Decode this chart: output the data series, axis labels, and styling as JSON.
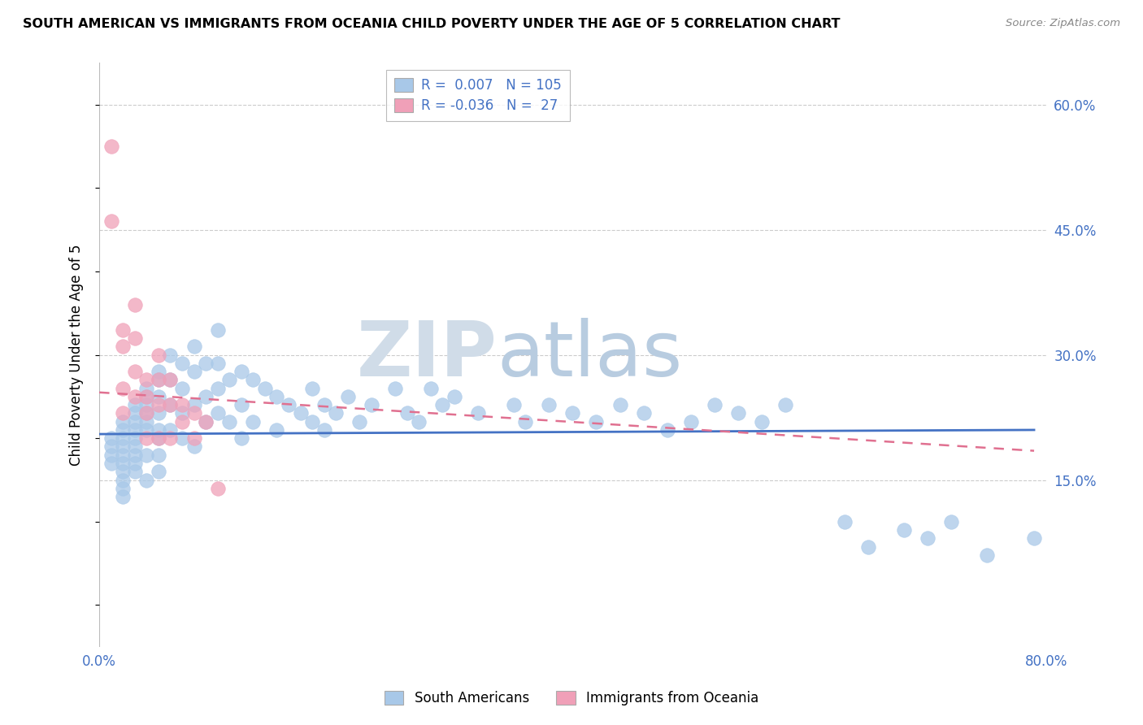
{
  "title": "SOUTH AMERICAN VS IMMIGRANTS FROM OCEANIA CHILD POVERTY UNDER THE AGE OF 5 CORRELATION CHART",
  "source": "Source: ZipAtlas.com",
  "ylabel": "Child Poverty Under the Age of 5",
  "y_ticks": [
    0.15,
    0.3,
    0.45,
    0.6
  ],
  "y_tick_labels": [
    "15.0%",
    "30.0%",
    "45.0%",
    "60.0%"
  ],
  "x_lim": [
    0.0,
    0.8
  ],
  "y_lim": [
    -0.05,
    0.65
  ],
  "blue_R": 0.007,
  "blue_N": 105,
  "pink_R": -0.036,
  "pink_N": 27,
  "blue_color": "#a8c8e8",
  "pink_color": "#f0a0b8",
  "blue_line_color": "#4472c4",
  "pink_line_color": "#e07090",
  "watermark_zip": "ZIP",
  "watermark_atlas": "atlas",
  "watermark_color_zip": "#d0dce8",
  "watermark_color_atlas": "#b8cce0",
  "blue_scatter_x": [
    0.01,
    0.01,
    0.01,
    0.01,
    0.02,
    0.02,
    0.02,
    0.02,
    0.02,
    0.02,
    0.02,
    0.02,
    0.02,
    0.02,
    0.03,
    0.03,
    0.03,
    0.03,
    0.03,
    0.03,
    0.03,
    0.03,
    0.03,
    0.04,
    0.04,
    0.04,
    0.04,
    0.04,
    0.04,
    0.04,
    0.04,
    0.05,
    0.05,
    0.05,
    0.05,
    0.05,
    0.05,
    0.05,
    0.05,
    0.06,
    0.06,
    0.06,
    0.06,
    0.07,
    0.07,
    0.07,
    0.07,
    0.08,
    0.08,
    0.08,
    0.08,
    0.09,
    0.09,
    0.09,
    0.1,
    0.1,
    0.1,
    0.1,
    0.11,
    0.11,
    0.12,
    0.12,
    0.12,
    0.13,
    0.13,
    0.14,
    0.15,
    0.15,
    0.16,
    0.17,
    0.18,
    0.18,
    0.19,
    0.19,
    0.2,
    0.21,
    0.22,
    0.23,
    0.25,
    0.26,
    0.27,
    0.28,
    0.29,
    0.3,
    0.32,
    0.35,
    0.36,
    0.38,
    0.4,
    0.42,
    0.44,
    0.46,
    0.48,
    0.5,
    0.52,
    0.54,
    0.56,
    0.58,
    0.63,
    0.65,
    0.68,
    0.7,
    0.72,
    0.75,
    0.79
  ],
  "blue_scatter_y": [
    0.2,
    0.19,
    0.18,
    0.17,
    0.22,
    0.21,
    0.2,
    0.19,
    0.18,
    0.17,
    0.16,
    0.15,
    0.14,
    0.13,
    0.24,
    0.23,
    0.22,
    0.21,
    0.2,
    0.19,
    0.18,
    0.17,
    0.16,
    0.26,
    0.25,
    0.24,
    0.23,
    0.22,
    0.21,
    0.18,
    0.15,
    0.28,
    0.27,
    0.25,
    0.23,
    0.21,
    0.2,
    0.18,
    0.16,
    0.3,
    0.27,
    0.24,
    0.21,
    0.29,
    0.26,
    0.23,
    0.2,
    0.31,
    0.28,
    0.24,
    0.19,
    0.29,
    0.25,
    0.22,
    0.33,
    0.29,
    0.26,
    0.23,
    0.27,
    0.22,
    0.28,
    0.24,
    0.2,
    0.27,
    0.22,
    0.26,
    0.25,
    0.21,
    0.24,
    0.23,
    0.26,
    0.22,
    0.24,
    0.21,
    0.23,
    0.25,
    0.22,
    0.24,
    0.26,
    0.23,
    0.22,
    0.26,
    0.24,
    0.25,
    0.23,
    0.24,
    0.22,
    0.24,
    0.23,
    0.22,
    0.24,
    0.23,
    0.21,
    0.22,
    0.24,
    0.23,
    0.22,
    0.24,
    0.1,
    0.07,
    0.09,
    0.08,
    0.1,
    0.06,
    0.08
  ],
  "pink_scatter_x": [
    0.01,
    0.01,
    0.02,
    0.02,
    0.02,
    0.02,
    0.03,
    0.03,
    0.03,
    0.03,
    0.04,
    0.04,
    0.04,
    0.04,
    0.05,
    0.05,
    0.05,
    0.05,
    0.06,
    0.06,
    0.06,
    0.07,
    0.07,
    0.08,
    0.08,
    0.09,
    0.1
  ],
  "pink_scatter_y": [
    0.55,
    0.46,
    0.33,
    0.31,
    0.26,
    0.23,
    0.36,
    0.32,
    0.28,
    0.25,
    0.27,
    0.25,
    0.23,
    0.2,
    0.3,
    0.27,
    0.24,
    0.2,
    0.27,
    0.24,
    0.2,
    0.24,
    0.22,
    0.23,
    0.2,
    0.22,
    0.14
  ],
  "blue_trend_x0": 0.0,
  "blue_trend_x1": 0.79,
  "blue_trend_y0": 0.205,
  "blue_trend_y1": 0.21,
  "pink_trend_x0": 0.0,
  "pink_trend_x1": 0.79,
  "pink_trend_y0": 0.255,
  "pink_trend_y1": 0.185
}
